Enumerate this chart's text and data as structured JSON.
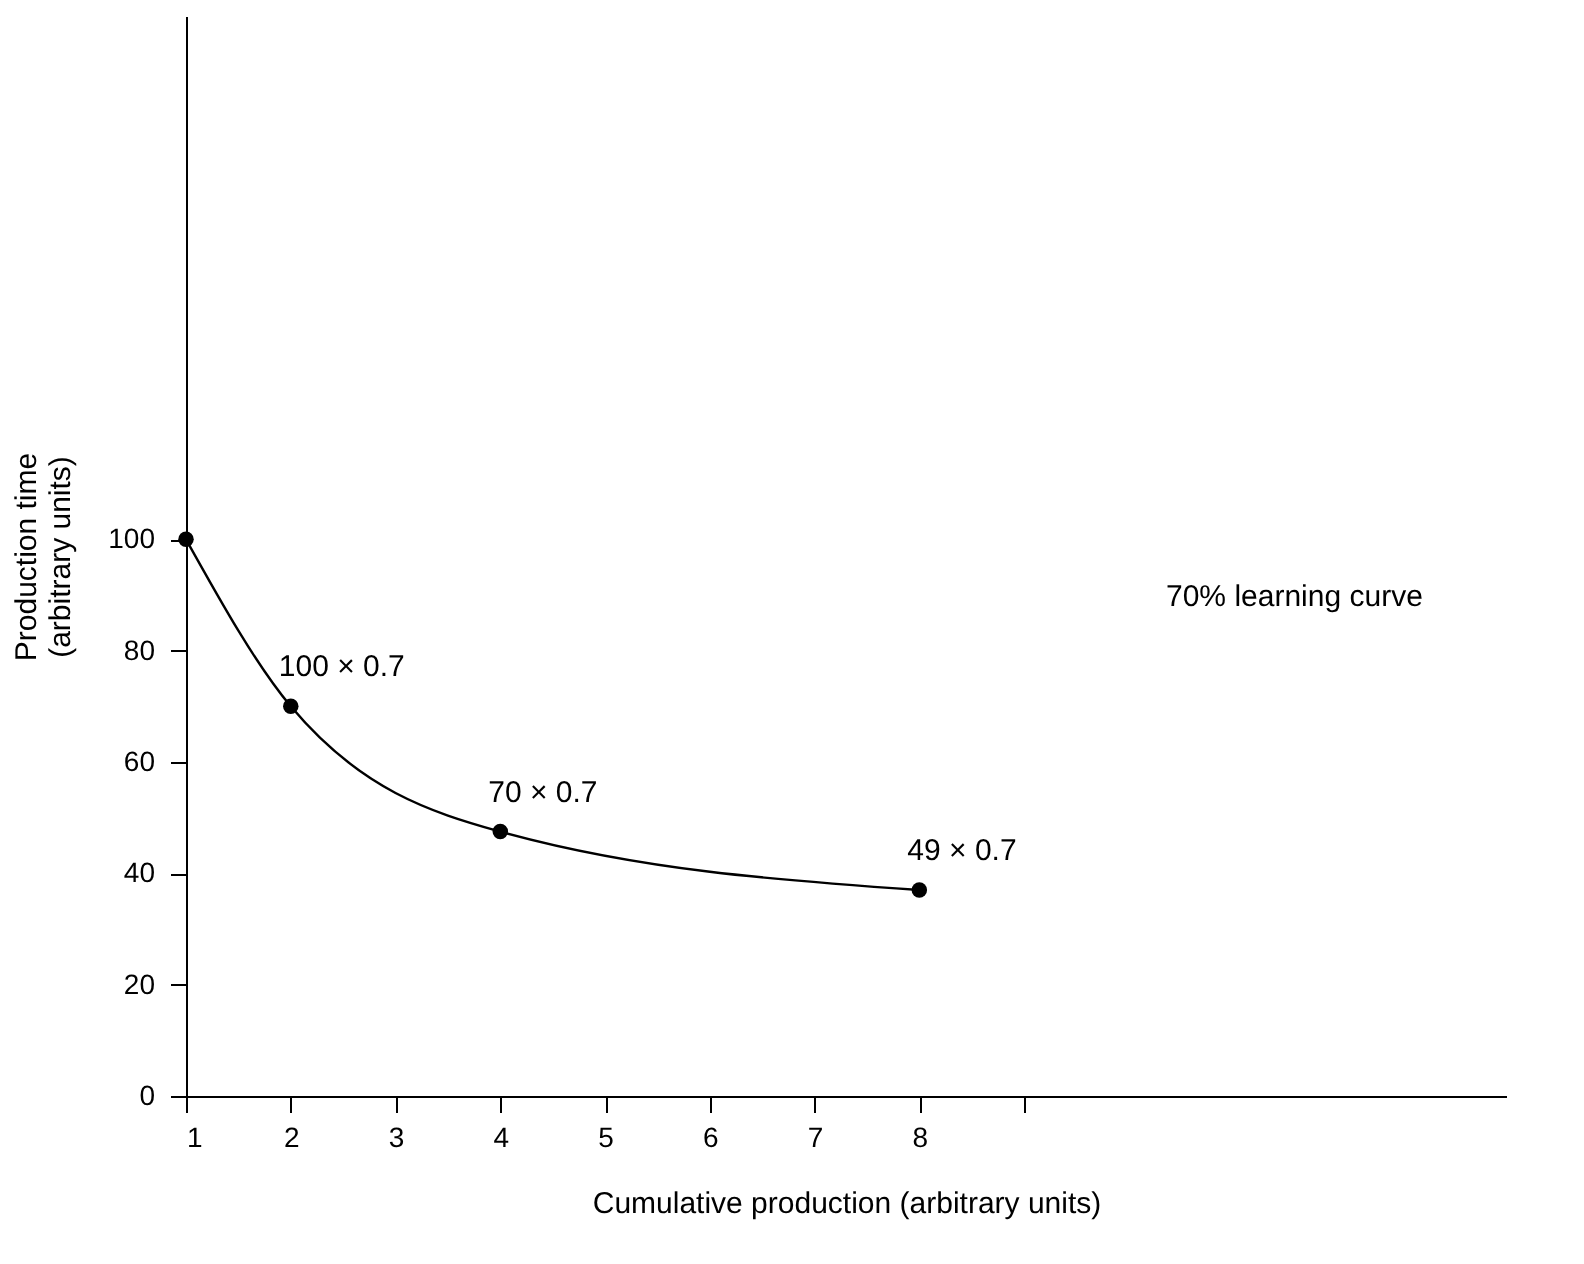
{
  "chart_data": {
    "type": "line",
    "xlabel": "Cumulative production (arbitrary units)",
    "ylabel": "Production time\n(arbitrary units)",
    "x": [
      1,
      2,
      4,
      8
    ],
    "series": [
      {
        "color": "#000000",
        "values": [
          100,
          70,
          47.5,
          37
        ]
      }
    ],
    "xlim": [
      1,
      13.6
    ],
    "xticks": [
      1,
      2,
      3,
      4,
      5,
      6,
      7,
      8,
      {
        "value": 9,
        "label": null
      }
    ],
    "ylim": [
      0,
      194
    ],
    "yticks": [
      0,
      20,
      40,
      60,
      80,
      100
    ],
    "annotations": [
      "70% learning curve",
      {
        "text": "100 × 0.7",
        "x": 2,
        "y": 70
      },
      {
        "text": "70 × 0.7",
        "x": 4,
        "y": 47.5
      },
      {
        "text": "49 × 0.7",
        "x": 8,
        "y": 37
      }
    ],
    "marker": "circle",
    "line_style": "solid",
    "grid": false
  }
}
